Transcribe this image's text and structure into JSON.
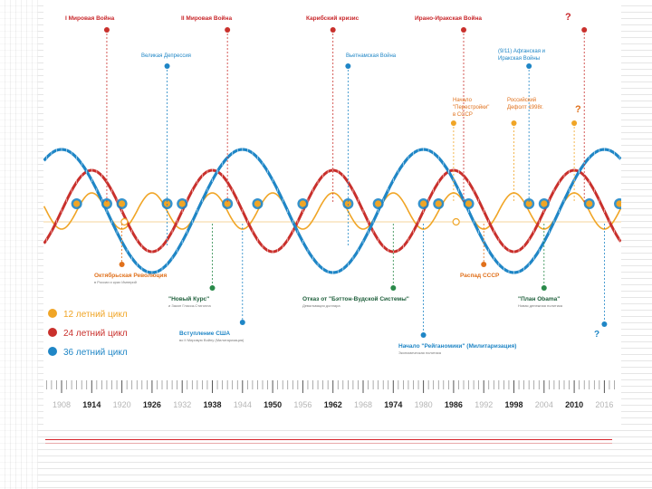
{
  "colors": {
    "orange": "#f0a526",
    "red": "#c9302c",
    "blue": "#1f86c6",
    "orange_label": "#e0701b",
    "red_label": "#c8262a",
    "blue_label": "#1f86c6",
    "green_dot": "#2a8a4a",
    "axis": "#555555",
    "tick_faint": "#b5b5b5"
  },
  "legend": [
    {
      "label": "12 летний цикл",
      "color_key": "orange"
    },
    {
      "label": "24 летний цикл",
      "color_key": "red"
    },
    {
      "label": "36 летний цикл",
      "color_key": "blue"
    }
  ],
  "top_events": [
    {
      "label": "I Мировая Война",
      "color_key": "red_label"
    },
    {
      "label": "II Мировая Война",
      "color_key": "red_label"
    },
    {
      "label": "Карибский кризис",
      "color_key": "red_label"
    },
    {
      "label": "Ирано-Иракская Война",
      "color_key": "red_label"
    },
    {
      "label": "?",
      "color_key": "red_label"
    }
  ],
  "mid_events": [
    {
      "label": "Великая Депрессия",
      "color_key": "blue_label"
    },
    {
      "label": "Вьетнамская Война",
      "color_key": "blue_label"
    },
    {
      "label": "(9/11) Афганская и",
      "color_key": "blue_label"
    },
    {
      "label": "Иракская Войны",
      "color_key": "blue_label"
    }
  ],
  "orange_events_top": [
    {
      "label": "Начало",
      "color_key": "orange_label"
    },
    {
      "label": "\"Перестройки\"",
      "color_key": "orange_label"
    },
    {
      "label": "в СССР",
      "color_key": "orange_label"
    },
    {
      "label": "Российский",
      "color_key": "orange_label"
    },
    {
      "label": "Дефолт 1998г.",
      "color_key": "orange_label"
    },
    {
      "label": "?",
      "color_key": "orange_label"
    }
  ],
  "bottom_events": [
    {
      "title": "Октябрьская Революция",
      "sub": "в России и крах Империй"
    },
    {
      "title": "\"Новый Курс\"",
      "sub": "и Закон Гласса-Стиголла"
    },
    {
      "title": "Вступление США",
      "sub": "во II Мировую Войну (Милитаризация)"
    },
    {
      "title": "Отказ от \"Бэттон-Вудской Системы\"",
      "sub": "Девальвация доллара"
    },
    {
      "title": "Начало \"Рейганомики\" (Милитаризация)",
      "sub": "Экономическая политика"
    },
    {
      "title": "Распад СССР",
      "sub": ""
    },
    {
      "title": "\"План Obama\"",
      "sub": "Новая денежная политика"
    },
    {
      "title": "?",
      "sub": ""
    }
  ],
  "timeline": {
    "years": [
      "1908",
      "1914",
      "1920",
      "1926",
      "1932",
      "1938",
      "1944",
      "1950",
      "1956",
      "1962",
      "1968",
      "1974",
      "1980",
      "1986",
      "1992",
      "1998",
      "2004",
      "2010",
      "2016"
    ],
    "bold_years": [
      "1914",
      "1926",
      "1938",
      "1950",
      "1962",
      "1974",
      "1986",
      "1998",
      "2010"
    ]
  }
}
